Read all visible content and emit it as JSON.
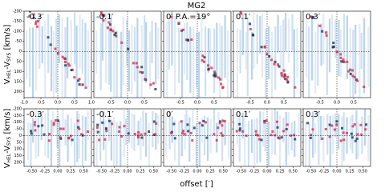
{
  "figure": {
    "title": "MG2",
    "x_label": "offset [′]",
    "y_label": {
      "v1": "V",
      "sub1": "HEL",
      "mid": "-V",
      "sub2": "SYS",
      "unit": " [km/s]"
    }
  },
  "chart_data": [
    {
      "type": "pv",
      "title": "-0.3′",
      "xlim": [
        -1,
        1
      ],
      "xticks": [
        {
          "value": -1,
          "label": "-1.0"
        },
        {
          "value": -0.5,
          "label": "-0.5"
        },
        {
          "value": 0,
          "label": "0.0"
        },
        0.5,
        {
          "value": 1,
          "label": "1.0"
        }
      ],
      "ylim": [
        -200,
        230
      ],
      "yticks": [
        -200,
        -150,
        -100,
        -50,
        0,
        50,
        100,
        150,
        200
      ]
    },
    {
      "type": "pv",
      "title": "-0.1′",
      "xlim": [
        -1,
        1
      ],
      "xticks": [
        {
          "value": -0.5,
          "label": "-0.5"
        },
        {
          "value": 0,
          "label": "0.0"
        },
        0.5
      ],
      "ylim": [
        -200,
        230
      ],
      "yticks": [
        -200,
        -150,
        -100,
        -50,
        0,
        50,
        100,
        150,
        200
      ]
    },
    {
      "type": "pv",
      "title": "0′ P.A.=19°",
      "xlim": [
        -1,
        1
      ],
      "xticks": [
        {
          "value": -0.5,
          "label": "-0.5"
        },
        {
          "value": 0,
          "label": "0.0"
        },
        0.5
      ],
      "ylim": [
        -200,
        230
      ],
      "yticks": [
        -200,
        -150,
        -100,
        -50,
        0,
        50,
        100,
        150,
        200
      ]
    },
    {
      "type": "pv",
      "title": "0.1′",
      "xlim": [
        -1,
        1
      ],
      "xticks": [
        {
          "value": -0.5,
          "label": "-0.5"
        },
        {
          "value": 0,
          "label": "0.0"
        },
        0.5
      ],
      "ylim": [
        -200,
        230
      ],
      "yticks": [
        -200,
        -150,
        -100,
        -50,
        0,
        50,
        100,
        150,
        200
      ]
    },
    {
      "type": "pv",
      "title": "0.3′",
      "xlim": [
        -1,
        1
      ],
      "xticks": [
        {
          "value": -0.5,
          "label": "-0.5"
        },
        {
          "value": 0,
          "label": "0.0"
        },
        0.5
      ],
      "ylim": [
        -200,
        230
      ],
      "yticks": [
        -200,
        -150,
        -100,
        -50,
        0,
        50,
        100,
        150,
        200
      ]
    },
    {
      "type": "pv",
      "title": "-0.3′",
      "xlim": [
        -0.65,
        0.65
      ],
      "xticks": [
        {
          "value": -0.5,
          "label": "-0.50"
        },
        -0.25,
        {
          "value": 0,
          "label": "0.00"
        },
        0.25,
        {
          "value": 0.5,
          "label": "0.50"
        }
      ],
      "ylim": [
        -200,
        230
      ],
      "yticks": [
        -200,
        -150,
        -100,
        -50,
        0,
        50,
        100,
        150,
        200
      ]
    },
    {
      "type": "pv",
      "title": "-0.1′",
      "xlim": [
        -0.65,
        0.65
      ],
      "xticks": [
        {
          "value": -0.5,
          "label": "-0.50"
        },
        -0.25,
        {
          "value": 0,
          "label": "0.00"
        },
        0.25,
        {
          "value": 0.5,
          "label": "0.50"
        }
      ],
      "ylim": [
        -200,
        230
      ],
      "yticks": [
        -200,
        -150,
        -100,
        -50,
        0,
        50,
        100,
        150,
        200
      ]
    },
    {
      "type": "pv",
      "title": "0′",
      "xlim": [
        -0.65,
        0.65
      ],
      "xticks": [
        {
          "value": -0.5,
          "label": "-0.50"
        },
        -0.25,
        {
          "value": 0,
          "label": "0.00"
        },
        0.25,
        {
          "value": 0.5,
          "label": "0.50"
        }
      ],
      "ylim": [
        -200,
        230
      ],
      "yticks": [
        -200,
        -150,
        -100,
        -50,
        0,
        50,
        100,
        150,
        200
      ]
    },
    {
      "type": "pv",
      "title": "0.1′",
      "xlim": [
        -0.65,
        0.65
      ],
      "xticks": [
        {
          "value": -0.5,
          "label": "-0.50"
        },
        -0.25,
        {
          "value": 0,
          "label": "0.00"
        },
        0.25,
        {
          "value": 0.5,
          "label": "0.50"
        }
      ],
      "ylim": [
        -200,
        230
      ],
      "yticks": [
        -200,
        -150,
        -100,
        -50,
        0,
        50,
        100,
        150,
        200
      ]
    },
    {
      "type": "pv",
      "title": "0.3′",
      "xlim": [
        -0.65,
        0.65
      ],
      "xticks": [
        {
          "value": -0.5,
          "label": "-0.50"
        },
        -0.25,
        {
          "value": 0,
          "label": "0.00"
        },
        0.25,
        {
          "value": 0.5,
          "label": "0.50"
        }
      ],
      "ylim": [
        -200,
        230
      ],
      "yticks": [
        -200,
        -150,
        -100,
        -50,
        0,
        50,
        100,
        150,
        200
      ]
    }
  ]
}
